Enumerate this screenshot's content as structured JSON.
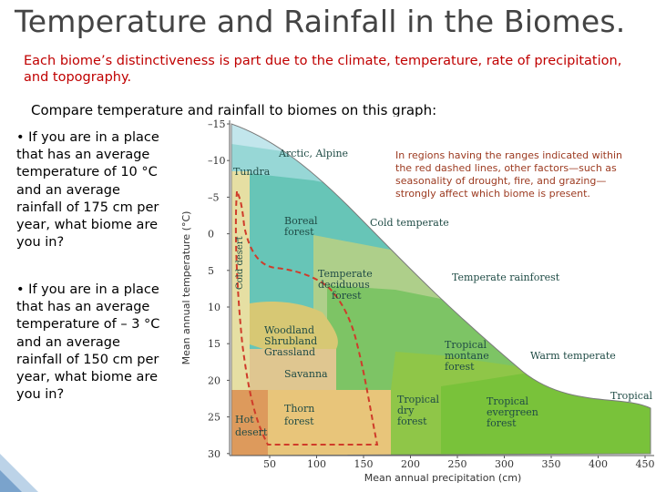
{
  "slide": {
    "title": "Temperature and Rainfall in the Biomes.",
    "subtitle": "Each biome’s distinctiveness is part due to the climate, temperature, rate of precipitation, and topography.",
    "compare_text": "Compare temperature and rainfall to biomes on this graph:",
    "question_1": "•  If you are in a place that has an average temperature of 10 °C  and an average rainfall of 175 cm per year, what biome are you in?",
    "question_2": "•   If you are in a place that has an average temperature of – 3 °C  and an average rainfall of 150 cm per year, what biome are you in?"
  },
  "diagram": {
    "y_axis_label": "Mean annual temperature (°C)",
    "x_axis_label": "Mean annual precipitation (cm)",
    "y_ticks": [
      "–15",
      "–10",
      "–5",
      "0",
      "5",
      "10",
      "15",
      "20",
      "25",
      "30"
    ],
    "x_ticks": [
      "50",
      "100",
      "150",
      "200",
      "250",
      "300",
      "350",
      "400",
      "450"
    ],
    "note": [
      "In regions having the ranges indicated within",
      "the red dashed lines, other factors—such as",
      "seasonality of drought, fire, and grazing—",
      "strongly affect which biome is present."
    ],
    "biomes": {
      "arctic": "Arctic, Alpine",
      "tundra": "Tundra",
      "boreal": [
        "Boreal",
        "forest"
      ],
      "cold_temperate": "Cold temperate",
      "cold_desert": "Cold desert",
      "temperate_deciduous": [
        "Temperate",
        "deciduous",
        "forest"
      ],
      "temperate_rainforest": "Temperate rainforest",
      "woodland": [
        "Woodland",
        "Shrubland",
        "Grassland"
      ],
      "tropical_montane": [
        "Tropical",
        "montane",
        "forest"
      ],
      "warm_temperate": "Warm temperate",
      "savanna": "Savanna",
      "thorn": [
        "Thorn",
        "forest"
      ],
      "hot_desert": [
        "Hot",
        "desert"
      ],
      "tropical_dry": [
        "Tropical",
        "dry",
        "forest"
      ],
      "tropical_evergreen": [
        "Tropical",
        "evergreen",
        "forest"
      ],
      "tropical": "Tropical"
    },
    "colors": {
      "arctic": "#c2e6ec",
      "tundra": "#97d7d6",
      "boreal": "#67c5b7",
      "temperate_deciduous": "#aecf8a",
      "woodland": "#d7c874",
      "tropical_montane": "#7dc465",
      "savanna": "#dfc690",
      "thorn": "#e8c57a",
      "hot_desert": "#dd9a5c",
      "tropical_dry": "#8fc648",
      "tropical_evergreen": "#79c23a",
      "cold_desert": "#e6dfa3",
      "label_text": "#1f4b45",
      "note_text": "#9c3a20",
      "dashed_line": "#cf3c2a"
    }
  }
}
